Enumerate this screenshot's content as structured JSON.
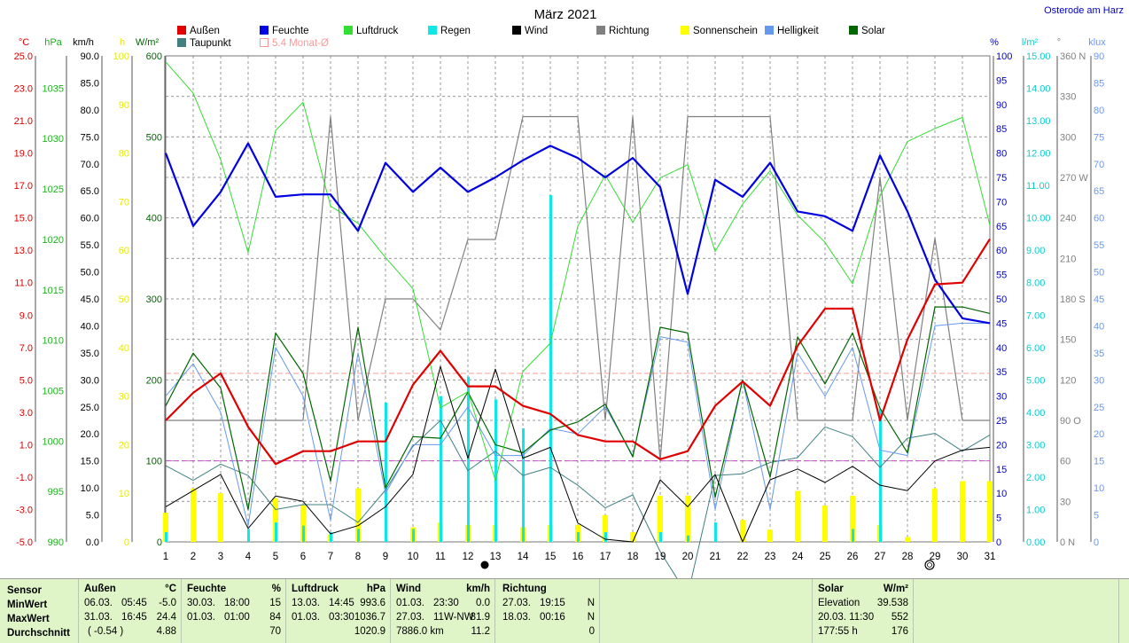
{
  "title": "März 2021",
  "location": "Osterode am Harz",
  "legend": [
    {
      "label": "Außen",
      "color": "#e00000",
      "type": "fill"
    },
    {
      "label": "Feuchte",
      "color": "#0000e0",
      "type": "fill"
    },
    {
      "label": "Luftdruck",
      "color": "#33dd33",
      "type": "fill"
    },
    {
      "label": "Regen",
      "color": "#11e6e6",
      "type": "fill"
    },
    {
      "label": "Wind",
      "color": "#000000",
      "type": "fill"
    },
    {
      "label": "Richtung",
      "color": "#808080",
      "type": "fill"
    },
    {
      "label": "Sonnenschein",
      "color": "#ffff00",
      "type": "fill"
    },
    {
      "label": "Helligkeit",
      "color": "#6699ee",
      "type": "fill"
    },
    {
      "label": "Solar",
      "color": "#006600",
      "type": "fill"
    },
    {
      "label": "Taupunkt",
      "color": "#408080",
      "type": "fill"
    },
    {
      "label": "5.4 Monat-Ø",
      "color": "#ff9999",
      "type": "outline"
    }
  ],
  "axes": {
    "left": [
      {
        "unit": "°C",
        "color": "#e00000",
        "ticks": [
          "25.0",
          "23.0",
          "21.0",
          "19.0",
          "17.0",
          "15.0",
          "13.0",
          "11.0",
          "9.0",
          "7.0",
          "5.0",
          "3.0",
          "1.0",
          "-1.0",
          "-3.0",
          "-5.0"
        ]
      },
      {
        "unit": "hPa",
        "color": "#20b020",
        "ticks": [
          "1035",
          "1030",
          "1025",
          "1020",
          "1015",
          "1010",
          "1005",
          "1000",
          "995",
          "990"
        ]
      },
      {
        "unit": "km/h",
        "color": "#000000",
        "ticks": [
          "90.0",
          "85.0",
          "80.0",
          "75.0",
          "70.0",
          "65.0",
          "60.0",
          "55.0",
          "50.0",
          "45.0",
          "40.0",
          "35.0",
          "30.0",
          "25.0",
          "20.0",
          "15.0",
          "10.0",
          "5.0",
          "0.0"
        ]
      },
      {
        "unit": "h",
        "color": "#e8e800",
        "ticks": [
          "100",
          "90",
          "80",
          "70",
          "60",
          "50",
          "40",
          "30",
          "20",
          "10",
          "0"
        ]
      },
      {
        "unit": "W/m²",
        "color": "#006600",
        "ticks": [
          "600",
          "500",
          "400",
          "300",
          "200",
          "100",
          "0"
        ]
      }
    ],
    "right": [
      {
        "unit": "%",
        "color": "#0000cc",
        "ticks": [
          "100",
          "95",
          "90",
          "85",
          "80",
          "75",
          "70",
          "65",
          "60",
          "55",
          "50",
          "45",
          "40",
          "35",
          "30",
          "25",
          "20",
          "15",
          "10",
          "5",
          "0"
        ]
      },
      {
        "unit": "l/m²",
        "color": "#11cccc",
        "ticks": [
          "15.00",
          "14.00",
          "13.00",
          "12.00",
          "11.00",
          "10.00",
          "9.00",
          "8.00",
          "7.00",
          "6.00",
          "5.00",
          "4.00",
          "3.00",
          "2.00",
          "1.00",
          "0.00"
        ]
      },
      {
        "unit": "°",
        "color": "#808080",
        "ticks": [
          "360 N",
          "330",
          "300",
          "270 W",
          "240",
          "210",
          "180 S",
          "150",
          "120",
          "90 O",
          "60",
          "30",
          "0 N"
        ]
      },
      {
        "unit": "klux",
        "color": "#6699ee",
        "ticks": [
          "90",
          "85",
          "80",
          "75",
          "70",
          "65",
          "60",
          "55",
          "50",
          "45",
          "40",
          "35",
          "30",
          "25",
          "20",
          "15",
          "10",
          "5",
          "0"
        ]
      }
    ],
    "x_ticks": [
      "1",
      "2",
      "3",
      "4",
      "5",
      "6",
      "7",
      "8",
      "9",
      "10",
      "11",
      "12",
      "13",
      "14",
      "15",
      "16",
      "17",
      "18",
      "19",
      "20",
      "21",
      "22",
      "23",
      "24",
      "25",
      "26",
      "27",
      "28",
      "29",
      "30",
      "31"
    ]
  },
  "chart_data": {
    "type": "line",
    "x": [
      1,
      2,
      3,
      4,
      5,
      6,
      7,
      8,
      9,
      10,
      11,
      12,
      13,
      14,
      15,
      16,
      17,
      18,
      19,
      20,
      21,
      22,
      23,
      24,
      25,
      26,
      27,
      28,
      29,
      30,
      31
    ],
    "series": [
      {
        "name": "Außen",
        "unit": "°C",
        "color": "#e00000",
        "values": [
          2.5,
          4.2,
          5.4,
          2.1,
          -0.2,
          0.6,
          0.6,
          1.2,
          1.2,
          4.7,
          6.8,
          4.6,
          4.6,
          3.4,
          2.9,
          1.6,
          1.2,
          1.2,
          0.1,
          0.6,
          3.4,
          4.9,
          3.4,
          7.1,
          9.4,
          9.4,
          2.5,
          7.5,
          10.9,
          11.0,
          13.7
        ]
      },
      {
        "name": "Feuchte",
        "unit": "%",
        "color": "#0000e0",
        "values": [
          80,
          65,
          72,
          82,
          71,
          71.5,
          71.5,
          64,
          78,
          72,
          77,
          72,
          75,
          78.5,
          81.5,
          79,
          75,
          79,
          73,
          51,
          74.5,
          71,
          78,
          68,
          67,
          64,
          79.5,
          68,
          54,
          46,
          45
        ]
      },
      {
        "name": "Luftdruck",
        "unit": "hPa",
        "color": "#33dd33",
        "values": [
          1037.6,
          1034.5,
          1027.9,
          1018.7,
          1030.8,
          1033.6,
          1023.3,
          1021.6,
          1018.2,
          1015.1,
          1003.3,
          1004.9,
          996.1,
          1006.9,
          1009.7,
          1021.3,
          1026.4,
          1021.7,
          1026.1,
          1027.4,
          1018.8,
          1023.5,
          1026.8,
          1022.4,
          1019.7,
          1015.6,
          1024.3,
          1029.7,
          1031.0,
          1032.1,
          1021.4
        ]
      },
      {
        "name": "Regen",
        "unit": "l/m²",
        "type": "bar",
        "color": "#11e6e6",
        "values": [
          0.3,
          0,
          0,
          0.4,
          0.6,
          0.5,
          0.3,
          0.4,
          4.3,
          0.4,
          4.5,
          5.1,
          4.4,
          3.5,
          10.7,
          0.3,
          0.3,
          0,
          0.3,
          0.2,
          0.6,
          0,
          0,
          0,
          0,
          0.4,
          4.1,
          0,
          0,
          0,
          0
        ]
      },
      {
        "name": "Wind",
        "unit": "km/h",
        "color": "#000000",
        "values": [
          6.5,
          9.5,
          12.5,
          2.5,
          8.5,
          7.5,
          1.5,
          3,
          6.5,
          12.5,
          32.5,
          15.5,
          32,
          15.5,
          17.5,
          3.5,
          0.5,
          0,
          11.5,
          6.5,
          12.5,
          0,
          11.5,
          13.5,
          11,
          14,
          10.5,
          9.5,
          15,
          17,
          17.5
        ]
      },
      {
        "name": "Richtung",
        "unit": "°",
        "color": "#808080",
        "values": [
          90,
          90,
          90,
          90,
          90,
          90,
          315,
          90,
          180,
          180,
          157,
          224,
          224,
          315,
          315,
          315,
          90,
          315,
          60,
          315,
          315,
          315,
          315,
          90,
          90,
          90,
          270,
          90,
          225,
          90,
          90
        ]
      },
      {
        "name": "Sonnenschein",
        "unit": "h",
        "type": "bar",
        "color": "#ffff00",
        "values": [
          6,
          11,
          10,
          0,
          9,
          7.5,
          1.5,
          11,
          0,
          3,
          4,
          3.5,
          3.5,
          3,
          3.5,
          3.5,
          5.5,
          2,
          9.5,
          9.5,
          0,
          4.5,
          2.5,
          10.5,
          7.5,
          9.5,
          3.5,
          1,
          11,
          12.5,
          12.5
        ]
      },
      {
        "name": "Helligkeit",
        "unit": "klux",
        "color": "#6699ee",
        "values": [
          27,
          33,
          24,
          3,
          36,
          27,
          4,
          35,
          9,
          18,
          18,
          25,
          16,
          16,
          21,
          20,
          25,
          16,
          38,
          37,
          6,
          30,
          6,
          35,
          27,
          36,
          17,
          16,
          40,
          40.5,
          40.5
        ]
      },
      {
        "name": "Solar",
        "unit": "W/m²",
        "color": "#006600",
        "values": [
          168,
          233,
          190,
          40,
          258,
          208,
          75,
          265,
          67,
          130,
          128,
          185,
          120,
          110,
          138,
          148,
          170,
          105,
          265,
          258,
          55,
          200,
          80,
          253,
          195,
          258,
          165,
          110,
          290,
          290,
          282
        ]
      },
      {
        "name": "Taupunkt",
        "unit": "°C",
        "color": "#408080",
        "values": [
          -0.3,
          -1.2,
          -0.2,
          -0.9,
          -3.0,
          -2.7,
          -2.7,
          -3.8,
          -1.8,
          0.9,
          2.5,
          -0.6,
          0.6,
          -0.9,
          -0.4,
          -1.5,
          -2.9,
          -2.1,
          -5.6,
          -8.3,
          -0.9,
          -0.8,
          -0.1,
          0.2,
          2.1,
          1.5,
          -0.4,
          1.4,
          1.7,
          0.6,
          1.6
        ]
      }
    ],
    "reference_lines": [
      {
        "name": "5.4 Monat-Ø",
        "axis": "°C",
        "value": 5.4,
        "color": "#ff9999"
      },
      {
        "axis": "°C",
        "value": 0.0,
        "color": "#cc44cc"
      }
    ],
    "moon_markers": [
      {
        "day": 13,
        "phase": "new"
      },
      {
        "day": 29,
        "phase": "full"
      }
    ],
    "xlim": [
      1,
      31
    ],
    "grid": true
  },
  "stats": {
    "row_labels": [
      "Sensor",
      "MinWert",
      "MaxWert",
      "Durchschnitt"
    ],
    "aussen": {
      "title": "Außen",
      "unit": "°C",
      "min_date": "06.03.",
      "min_time": "05:45",
      "min_val": "-5.0",
      "max_date": "31.03.",
      "max_time": "16:45",
      "max_val": "24.4",
      "avg_note": "( -0.54 )",
      "avg_val": "4.88"
    },
    "feuchte": {
      "title": "Feuchte",
      "unit": "%",
      "min_date": "30.03.",
      "min_time": "18:00",
      "min_val": "15",
      "max_date": "01.03.",
      "max_time": "01:00",
      "max_val": "84",
      "avg_val": "70"
    },
    "luftdruck": {
      "title": "Luftdruck",
      "unit": "hPa",
      "min_date": "13.03.",
      "min_time": "14:45",
      "min_val": "993.6",
      "max_date": "01.03.",
      "max_time": "03:30",
      "max_val": "1036.7",
      "avg_val": "1020.9"
    },
    "wind": {
      "title": "Wind",
      "unit": "km/h",
      "min_date": "01.03.",
      "min_time": "23:30",
      "min_val": "0.0",
      "max_date": "27.03.",
      "max_time": "11W-NW",
      "max_val": "81.9",
      "avg_note": "7886.0 km",
      "avg_val": "11.2"
    },
    "richtung": {
      "title": "Richtung",
      "min_date": "27.03.",
      "min_time": "19:15",
      "min_val": "N",
      "max_date": "18.03.",
      "max_time": "00:16",
      "max_val": "N",
      "avg_val": "0"
    },
    "solar": {
      "title": "Solar",
      "unit": "W/m²",
      "r1_label": "Elevation",
      "r1_val": "39.538",
      "r2_label": "20.03.  11:30",
      "r2_val": "552",
      "r3_label": "177:55 h",
      "r3_val": "176"
    }
  }
}
